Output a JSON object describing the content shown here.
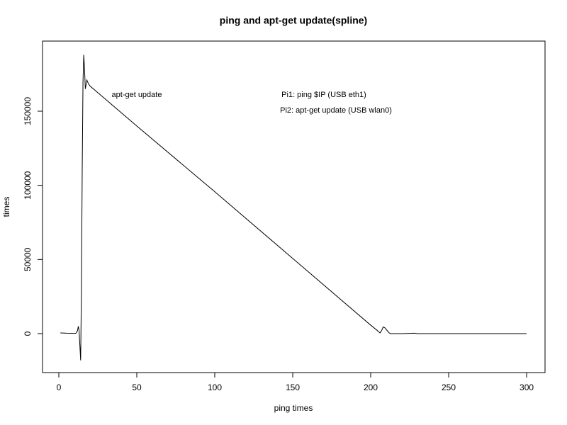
{
  "chart_data": {
    "type": "line",
    "title": "ping and apt-get update(spline)",
    "x_label": "ping times",
    "y_label": "times",
    "annotations": [
      "apt-get update",
      "Pi1: ping $IP (USB eth1)",
      "Pi2: apt-get update (USB wlan0)"
    ],
    "x": [
      1,
      5,
      10,
      11,
      12,
      12.5,
      13,
      13.5,
      14,
      14.5,
      15,
      15.5,
      16,
      16.5,
      17,
      17.5,
      18,
      19,
      20,
      50,
      100,
      150,
      200,
      204,
      206,
      207,
      208,
      209,
      210,
      211,
      212,
      213,
      220,
      228,
      230,
      250,
      300
    ],
    "series": [
      {
        "name": "times",
        "color": "#000000",
        "values": [
          500,
          300,
          200,
          300,
          2000,
          5000,
          2000,
          -8000,
          -18000,
          30000,
          110000,
          170000,
          188000,
          178000,
          165000,
          168000,
          171000,
          168500,
          167000,
          140000,
          95700,
          50700,
          5700,
          2300,
          500,
          2000,
          4500,
          4000,
          2800,
          1500,
          400,
          0,
          0,
          300,
          0,
          0,
          0
        ]
      }
    ],
    "xlim": [
      -10.45,
      311.8
    ],
    "ylim": [
      -26274,
      197290
    ],
    "xticks": [
      0,
      50,
      100,
      150,
      200,
      250,
      300
    ],
    "yticks": [
      0,
      50000,
      100000,
      150000
    ]
  }
}
